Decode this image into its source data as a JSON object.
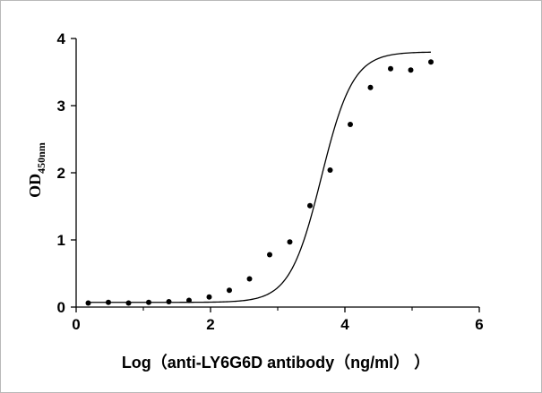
{
  "chart_data": {
    "type": "scatter",
    "x": [
      0.18,
      0.48,
      0.78,
      1.08,
      1.38,
      1.68,
      1.98,
      2.28,
      2.58,
      2.88,
      3.18,
      3.48,
      3.78,
      4.08,
      4.38,
      4.68,
      4.98,
      5.28
    ],
    "y": [
      0.06,
      0.07,
      0.06,
      0.07,
      0.08,
      0.1,
      0.15,
      0.25,
      0.42,
      0.78,
      0.97,
      1.51,
      2.04,
      2.72,
      3.27,
      3.55,
      3.53,
      3.65
    ],
    "fit": {
      "model": "4PL",
      "bottom": 0.07,
      "top": 3.8,
      "ec50_log": 3.65,
      "hill": 1.85
    },
    "xlim": [
      0,
      6
    ],
    "ylim": [
      0,
      4
    ],
    "xticks": [
      "0",
      "2",
      "4",
      "6"
    ],
    "yticks": [
      "0",
      "1",
      "2",
      "3",
      "4"
    ],
    "xlabel": "Log（anti-LY6G6D antibody（ng/ml）  ）",
    "ylabel": "OD",
    "ylabel_sub": "450nm",
    "grid": false,
    "colors": {
      "points": "#000000",
      "line": "#000000"
    }
  }
}
